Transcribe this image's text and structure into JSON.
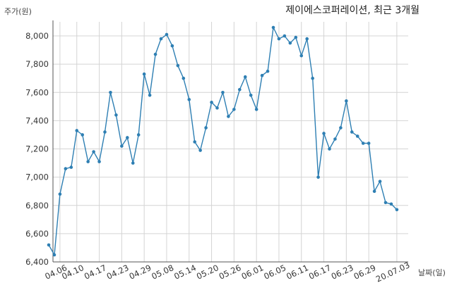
{
  "chart_data": {
    "type": "line",
    "title": "제이에스코퍼레이션, 최근 3개월",
    "xlabel": "날짜(일)",
    "ylabel": "주가(원)",
    "ylim": [
      6400,
      8100
    ],
    "yticks": [
      6400,
      6600,
      6800,
      7000,
      7200,
      7400,
      7600,
      7800,
      8000
    ],
    "ytick_labels": [
      "6,400",
      "6,600",
      "6,800",
      "7,000",
      "7,200",
      "7,400",
      "7,600",
      "7,800",
      "8,000"
    ],
    "xtick_labels": [
      "04.06",
      "04.10",
      "04.17",
      "04.23",
      "04.29",
      "05.08",
      "05.14",
      "05.20",
      "05.26",
      "06.01",
      "06.05",
      "06.11",
      "06.17",
      "06.23",
      "06.29",
      "20.07.03"
    ],
    "xtick_indices": [
      2,
      5,
      9,
      13,
      17,
      21,
      25,
      29,
      33,
      37,
      41,
      45,
      49,
      53,
      57,
      62
    ],
    "grid": true,
    "series": [
      {
        "name": "",
        "color": "#2e7fb3",
        "values": [
          6520,
          6450,
          6880,
          7060,
          7070,
          7330,
          7300,
          7110,
          7180,
          7110,
          7320,
          7600,
          7440,
          7220,
          7280,
          7100,
          7300,
          7730,
          7580,
          7870,
          7980,
          8010,
          7930,
          7790,
          7700,
          7550,
          7250,
          7190,
          7350,
          7530,
          7490,
          7600,
          7430,
          7480,
          7620,
          7710,
          7580,
          7480,
          7720,
          7750,
          8060,
          7980,
          8000,
          7950,
          7990,
          7860,
          7980,
          7700,
          7000,
          7310,
          7200,
          7270,
          7350,
          7540,
          7320,
          7290,
          7240,
          7240,
          6900,
          6970,
          6820,
          6810,
          6770
        ]
      }
    ]
  }
}
